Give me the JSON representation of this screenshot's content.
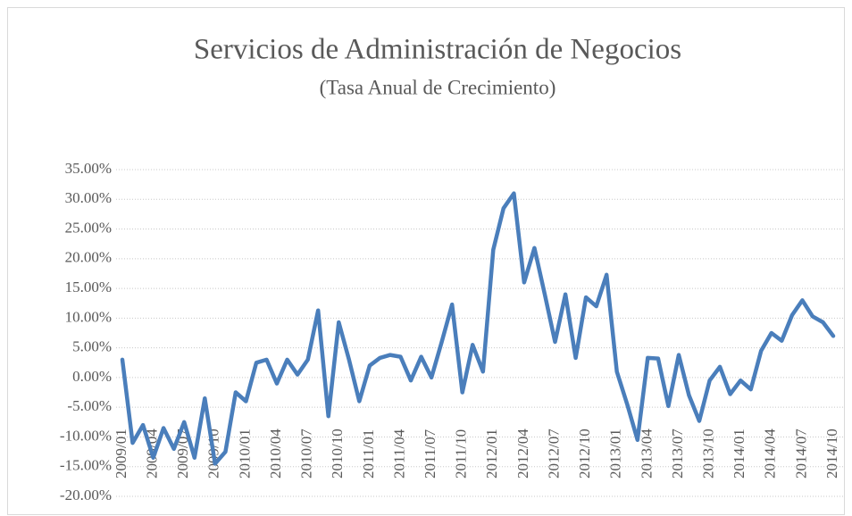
{
  "chart_data": {
    "type": "line",
    "title": "Servicios de Administración de Negocios",
    "subtitle": "(Tasa Anual de Crecimiento)",
    "categories": [
      "2009/01",
      null,
      null,
      "2009/04",
      null,
      null,
      "2009/07",
      null,
      null,
      "2009/10",
      null,
      null,
      "2010/01",
      null,
      null,
      "2010/04",
      null,
      null,
      "2010/07",
      null,
      null,
      "2010/10",
      null,
      null,
      "2011/01",
      null,
      null,
      "2011/04",
      null,
      null,
      "2011/07",
      null,
      null,
      "2011/10",
      null,
      null,
      "2012/01",
      null,
      null,
      "2012/04",
      null,
      null,
      "2012/07",
      null,
      null,
      "2012/10",
      null,
      null,
      "2013/01",
      null,
      null,
      "2013/04",
      null,
      null,
      "2013/07",
      null,
      null,
      "2013/10",
      null,
      null,
      "2014/01",
      null,
      null,
      "2014/04",
      null,
      null,
      "2014/07",
      null,
      null,
      "2014/10"
    ],
    "series": [
      {
        "name": "Tasa Anual de Crecimiento",
        "color": "#4a7ebb",
        "values": [
          3.0,
          -11,
          -8,
          -13.5,
          -8.5,
          -12,
          -7.5,
          -13.5,
          -3.5,
          -14.5,
          -12.5,
          -2.5,
          -4,
          2.5,
          3,
          -1,
          3,
          0.5,
          3,
          11.3,
          -6.5,
          9.3,
          3,
          -4,
          2,
          3.3,
          3.8,
          3.5,
          -0.5,
          3.5,
          0,
          6,
          12.3,
          -2.5,
          5.5,
          1,
          21.5,
          28.5,
          31,
          16,
          21.8,
          14,
          6,
          14,
          3.3,
          13.5,
          12,
          17.3,
          1,
          -4.5,
          -10.5,
          3.3,
          3.2,
          -4.8,
          3.8,
          -3,
          -7.3,
          -0.5,
          1.8,
          -2.8,
          -0.5,
          -2,
          4.5,
          7.5,
          6.2,
          10.5,
          13,
          10.3,
          9.3,
          7
        ]
      }
    ],
    "ylim": [
      -20,
      35
    ],
    "yticks": [
      {
        "value": -20,
        "label": "-20.00%"
      },
      {
        "value": -15,
        "label": "-15.00%"
      },
      {
        "value": -10,
        "label": "-10.00%"
      },
      {
        "value": -5,
        "label": "-5.00%"
      },
      {
        "value": 0,
        "label": "0.00%"
      },
      {
        "value": 5,
        "label": "5.00%"
      },
      {
        "value": 10,
        "label": "10.00%"
      },
      {
        "value": 15,
        "label": "15.00%"
      },
      {
        "value": 20,
        "label": "20.00%"
      },
      {
        "value": 25,
        "label": "25.00%"
      },
      {
        "value": 30,
        "label": "30.00%"
      },
      {
        "value": 35,
        "label": "35.00%"
      }
    ],
    "grid": true
  }
}
